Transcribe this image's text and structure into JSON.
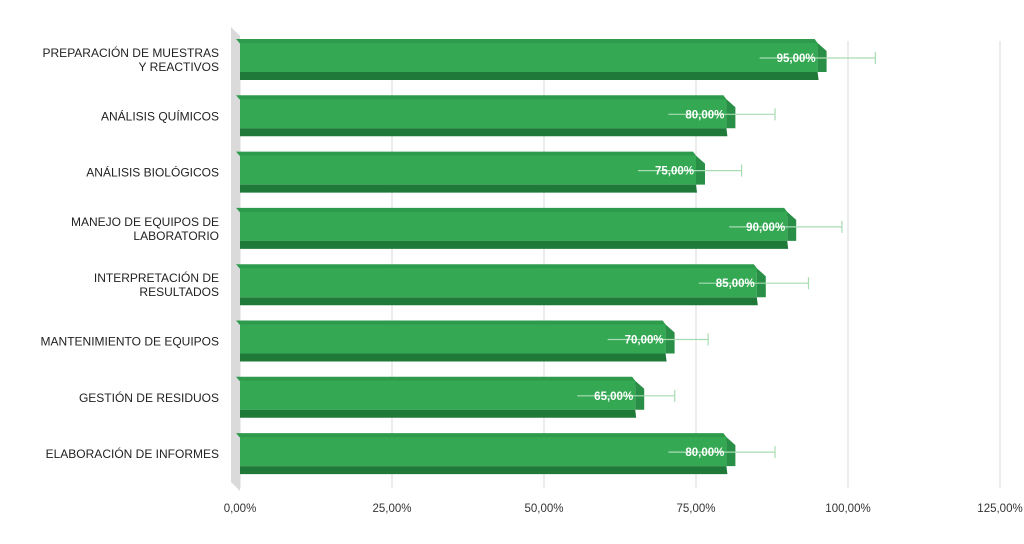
{
  "chart_data": {
    "type": "bar",
    "orientation": "horizontal",
    "style": "3d",
    "categories": [
      [
        "PREPARACIÓN DE MUESTRAS",
        "Y REACTIVOS"
      ],
      [
        "ANÁLISIS QUÍMICOS"
      ],
      [
        "ANÁLISIS BIOLÓGICOS"
      ],
      [
        "MANEJO DE EQUIPOS DE",
        "LABORATORIO"
      ],
      [
        "INTERPRETACIÓN DE",
        "RESULTADOS"
      ],
      [
        "MANTENIMIENTO DE EQUIPOS"
      ],
      [
        "GESTIÓN DE RESIDUOS"
      ],
      [
        "ELABORACIÓN DE INFORMES"
      ]
    ],
    "values": [
      95,
      80,
      75,
      90,
      85,
      70,
      65,
      80
    ],
    "data_labels": [
      "95,00%",
      "80,00%",
      "75,00%",
      "90,00%",
      "85,00%",
      "70,00%",
      "65,00%",
      "80,00%"
    ],
    "error_plus": [
      9.5,
      8,
      7.5,
      9,
      8.5,
      7,
      6.5,
      8
    ],
    "xlim": [
      0,
      125
    ],
    "x_ticks": [
      0,
      25,
      50,
      75,
      100,
      125
    ],
    "x_tick_labels": [
      "0,00%",
      "25,00%",
      "50,00%",
      "75,00%",
      "100,00%",
      "125,00%"
    ],
    "title": "",
    "xlabel": "",
    "ylabel": "",
    "grid": true,
    "legend": "none",
    "colors": {
      "bar_front": "#34a853",
      "bar_top": "#2e9b4c",
      "bar_bottom": "#1f7a3a",
      "bar_side": "#2a8f46",
      "floor": "#dadada",
      "grid": "#d9d9d9",
      "error_bar": "#a8dcb4"
    }
  }
}
